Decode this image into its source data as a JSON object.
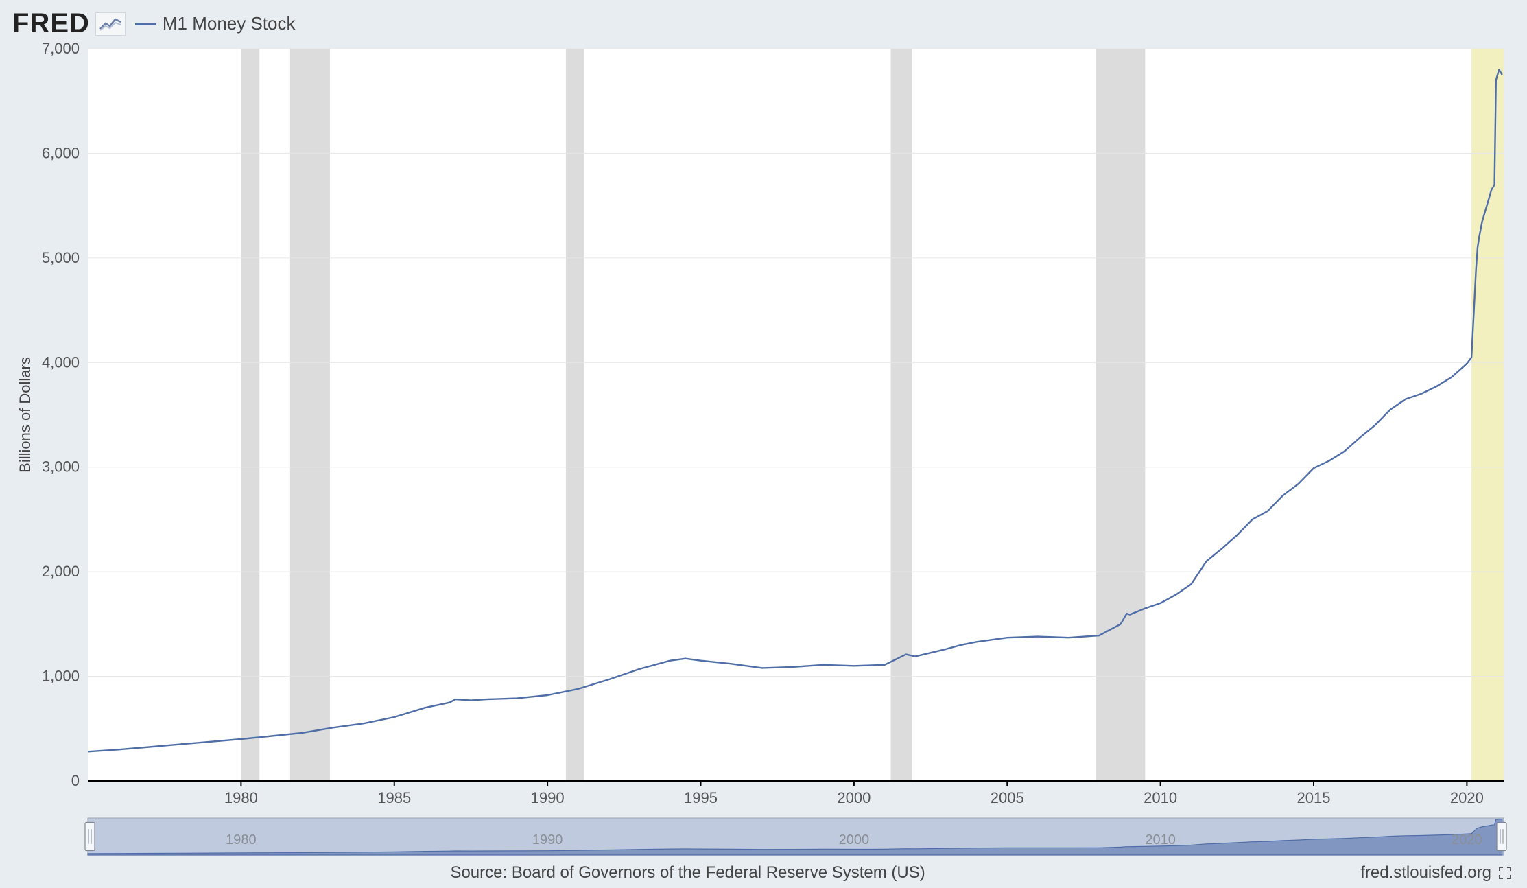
{
  "header": {
    "logo_text": "FRED",
    "legend_label": "M1 Money Stock"
  },
  "chart": {
    "type": "line",
    "ylabel": "Billions of Dollars",
    "ylim": [
      0,
      7000
    ],
    "ytick_step": 1000,
    "ytick_labels": [
      "0",
      "1,000",
      "2,000",
      "3,000",
      "4,000",
      "5,000",
      "6,000",
      "7,000"
    ],
    "xlim": [
      1975,
      2021.2
    ],
    "xticks": [
      1980,
      1985,
      1990,
      1995,
      2000,
      2005,
      2010,
      2015,
      2020
    ],
    "xtick_labels": [
      "1980",
      "1985",
      "1990",
      "1995",
      "2000",
      "2005",
      "2010",
      "2015",
      "2020"
    ],
    "line_color": "#4f6da7",
    "line_width": 2.4,
    "grid_color": "#e6e6e6",
    "axis_color": "#000000",
    "background_color": "#ffffff",
    "recession_band_color": "#dcdcdc",
    "highlight_band_color": "#f3f0c0",
    "recession_bands": [
      [
        1980.0,
        1980.6
      ],
      [
        1981.6,
        1982.9
      ],
      [
        1990.6,
        1991.2
      ],
      [
        2001.2,
        2001.9
      ],
      [
        2007.9,
        2009.5
      ]
    ],
    "highlight_bands": [
      [
        2020.15,
        2021.2
      ]
    ],
    "series": [
      [
        1975.0,
        280
      ],
      [
        1976.0,
        300
      ],
      [
        1977.0,
        325
      ],
      [
        1978.0,
        350
      ],
      [
        1979.0,
        375
      ],
      [
        1980.0,
        400
      ],
      [
        1981.0,
        430
      ],
      [
        1982.0,
        460
      ],
      [
        1983.0,
        510
      ],
      [
        1984.0,
        550
      ],
      [
        1985.0,
        610
      ],
      [
        1986.0,
        700
      ],
      [
        1986.8,
        750
      ],
      [
        1987.0,
        780
      ],
      [
        1987.5,
        770
      ],
      [
        1988.0,
        780
      ],
      [
        1989.0,
        790
      ],
      [
        1990.0,
        820
      ],
      [
        1991.0,
        880
      ],
      [
        1992.0,
        970
      ],
      [
        1993.0,
        1070
      ],
      [
        1994.0,
        1150
      ],
      [
        1994.5,
        1170
      ],
      [
        1995.0,
        1150
      ],
      [
        1996.0,
        1120
      ],
      [
        1997.0,
        1080
      ],
      [
        1998.0,
        1090
      ],
      [
        1999.0,
        1110
      ],
      [
        2000.0,
        1100
      ],
      [
        2001.0,
        1110
      ],
      [
        2001.7,
        1210
      ],
      [
        2002.0,
        1190
      ],
      [
        2003.0,
        1260
      ],
      [
        2003.5,
        1300
      ],
      [
        2004.0,
        1330
      ],
      [
        2005.0,
        1370
      ],
      [
        2006.0,
        1380
      ],
      [
        2007.0,
        1370
      ],
      [
        2008.0,
        1390
      ],
      [
        2008.7,
        1500
      ],
      [
        2008.9,
        1600
      ],
      [
        2009.0,
        1590
      ],
      [
        2009.5,
        1650
      ],
      [
        2010.0,
        1700
      ],
      [
        2010.5,
        1780
      ],
      [
        2011.0,
        1880
      ],
      [
        2011.5,
        2100
      ],
      [
        2012.0,
        2220
      ],
      [
        2012.5,
        2350
      ],
      [
        2013.0,
        2500
      ],
      [
        2013.5,
        2580
      ],
      [
        2014.0,
        2730
      ],
      [
        2014.5,
        2840
      ],
      [
        2015.0,
        2990
      ],
      [
        2015.5,
        3060
      ],
      [
        2016.0,
        3150
      ],
      [
        2016.5,
        3280
      ],
      [
        2017.0,
        3400
      ],
      [
        2017.5,
        3550
      ],
      [
        2018.0,
        3650
      ],
      [
        2018.5,
        3700
      ],
      [
        2019.0,
        3770
      ],
      [
        2019.5,
        3860
      ],
      [
        2020.0,
        3990
      ],
      [
        2020.15,
        4050
      ],
      [
        2020.3,
        4900
      ],
      [
        2020.35,
        5100
      ],
      [
        2020.4,
        5200
      ],
      [
        2020.5,
        5350
      ],
      [
        2020.6,
        5450
      ],
      [
        2020.7,
        5550
      ],
      [
        2020.8,
        5650
      ],
      [
        2020.9,
        5700
      ],
      [
        2020.95,
        6700
      ],
      [
        2021.05,
        6800
      ],
      [
        2021.15,
        6750
      ]
    ]
  },
  "range_selector": {
    "fill_color": "#a9b7d4",
    "fill_opacity": 0.65,
    "border_color": "#9aa3b0",
    "handle_fill": "#f5f7fa",
    "handle_border": "#7d8794",
    "xticks": [
      1980,
      1990,
      2000,
      2010,
      2020
    ],
    "xtick_labels": [
      "1980",
      "1990",
      "2000",
      "2010",
      "2020"
    ],
    "ylim": [
      0,
      7000
    ]
  },
  "footer": {
    "source_text": "Source: Board of Governors of the Federal Reserve System (US)",
    "site_text": "fred.stlouisfed.org"
  },
  "layout": {
    "page_bg": "#e8edf2"
  }
}
